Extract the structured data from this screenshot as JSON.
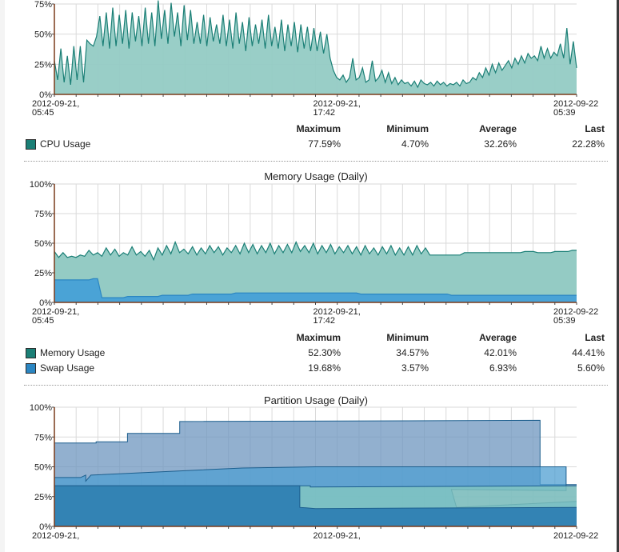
{
  "theme": {
    "cpu": "#1b7f76",
    "cpu_fill": "#94cbc4",
    "mem": "#1b7f76",
    "mem_fill": "#94cbc4",
    "swap": "#2b86c2",
    "swap_fill": "#4aa3d6",
    "axis": "#7a3b1b"
  },
  "cpu": {
    "title": "",
    "y_ticks": [
      "75%",
      "50%",
      "25%",
      "0%"
    ],
    "x_labels": [
      [
        "2012-09-21,",
        "05:45"
      ],
      [
        "2012-09-21,",
        "17:42"
      ],
      [
        "2012-09-22",
        "05:39"
      ]
    ],
    "legend_headers": [
      "Maximum",
      "Minimum",
      "Average",
      "Last"
    ],
    "legend": [
      {
        "name": "CPU Usage",
        "color": "#1b7f76",
        "max": "77.59%",
        "min": "4.70%",
        "avg": "32.26%",
        "last": "22.28%"
      }
    ]
  },
  "memory": {
    "title": "Memory Usage (Daily)",
    "y_ticks": [
      "100%",
      "75%",
      "50%",
      "25%",
      "0%"
    ],
    "x_labels": [
      [
        "2012-09-21,",
        "05:45"
      ],
      [
        "2012-09-21,",
        "17:42"
      ],
      [
        "2012-09-22",
        "05:39"
      ]
    ],
    "legend_headers": [
      "Maximum",
      "Minimum",
      "Average",
      "Last"
    ],
    "legend": [
      {
        "name": "Memory Usage",
        "color": "#1b7f76",
        "max": "52.30%",
        "min": "34.57%",
        "avg": "42.01%",
        "last": "44.41%"
      },
      {
        "name": "Swap Usage",
        "color": "#2b86c2",
        "max": "19.68%",
        "min": "3.57%",
        "avg": "6.93%",
        "last": "5.60%"
      }
    ]
  },
  "partition": {
    "title": "Partition Usage (Daily)",
    "y_ticks": [
      "100%",
      "75%",
      "50%",
      "25%",
      "0%"
    ],
    "x_labels": [
      "2012-09-21,",
      "2012-09-21,",
      "2012-09-22"
    ]
  },
  "chart_data": [
    {
      "type": "area",
      "title": "",
      "series": [
        {
          "name": "CPU Usage",
          "values": [
            28,
            12,
            38,
            10,
            32,
            8,
            40,
            12,
            40,
            10,
            45,
            42,
            40,
            48,
            65,
            40,
            68,
            38,
            72,
            40,
            66,
            42,
            70,
            38,
            68,
            44,
            65,
            40,
            72,
            42,
            68,
            40,
            78,
            46,
            70,
            42,
            76,
            48,
            68,
            40,
            74,
            45,
            70,
            42,
            60,
            42,
            66,
            40,
            64,
            44,
            58,
            42,
            66,
            40,
            62,
            38,
            68,
            42,
            60,
            36,
            64,
            40,
            58,
            42,
            62,
            38,
            66,
            40,
            56,
            38,
            62,
            36,
            58,
            40,
            60,
            35,
            58,
            38,
            56,
            36,
            55,
            36,
            52,
            34,
            50,
            30,
            20,
            14,
            12,
            16,
            10,
            14,
            30,
            12,
            14,
            22,
            10,
            12,
            28,
            11,
            14,
            20,
            10,
            18,
            9,
            14,
            8,
            12,
            9,
            10,
            7,
            11,
            6,
            12,
            9,
            8,
            10,
            7,
            11,
            8,
            10,
            7,
            9,
            8,
            10,
            7,
            12,
            9,
            10,
            14,
            12,
            18,
            14,
            22,
            16,
            25,
            18,
            26,
            20,
            24,
            28,
            22,
            30,
            25,
            32,
            26,
            34,
            30,
            32,
            28,
            40,
            30,
            38,
            30,
            35,
            32,
            42,
            30,
            55,
            25,
            44,
            22
          ]
        }
      ],
      "ylim": [
        0,
        75
      ],
      "x_tick_labels": [
        "2012-09-21, 05:45",
        "2012-09-21, 17:42",
        "2012-09-22 05:39"
      ]
    },
    {
      "type": "area",
      "title": "Memory Usage (Daily)",
      "series": [
        {
          "name": "Memory Usage",
          "values": [
            43,
            38,
            42,
            38,
            39,
            38,
            40,
            39,
            44,
            40,
            42,
            39,
            46,
            40,
            45,
            39,
            42,
            40,
            47,
            40,
            43,
            39,
            44,
            36,
            46,
            40,
            48,
            41,
            51,
            42,
            45,
            41,
            47,
            40,
            46,
            41,
            48,
            42,
            47,
            40,
            46,
            42,
            48,
            41,
            50,
            42,
            49,
            41,
            48,
            42,
            50,
            41,
            48,
            42,
            49,
            42,
            51,
            43,
            48,
            42,
            50,
            41,
            48,
            42,
            49,
            41,
            47,
            42,
            48,
            41,
            47,
            40,
            48,
            41,
            46,
            40,
            47,
            41,
            48,
            40,
            46,
            40,
            47,
            40,
            48,
            41,
            46,
            40,
            40,
            40,
            40,
            40,
            40,
            40,
            40,
            42,
            42,
            42,
            42,
            42,
            42,
            42,
            42,
            42,
            42,
            42,
            42,
            42,
            42,
            43,
            43,
            43,
            42,
            42,
            42,
            42,
            43,
            43,
            43,
            43,
            44,
            44
          ]
        },
        {
          "name": "Swap Usage",
          "values": [
            19,
            19,
            19,
            19,
            19,
            19,
            19,
            19,
            19,
            20,
            20,
            4,
            4,
            4,
            4,
            4,
            4,
            5,
            5,
            5,
            5,
            5,
            5,
            5,
            5,
            6,
            6,
            6,
            6,
            6,
            6,
            6,
            7,
            7,
            7,
            7,
            7,
            7,
            7,
            7,
            7,
            7,
            8,
            8,
            8,
            8,
            8,
            8,
            8,
            8,
            8,
            8,
            8,
            8,
            8,
            8,
            8,
            8,
            8,
            8,
            8,
            8,
            8,
            8,
            8,
            8,
            8,
            8,
            8,
            8,
            8,
            7,
            7,
            7,
            7,
            7,
            7,
            7,
            7,
            7,
            7,
            7,
            7,
            7,
            7,
            7,
            7,
            7,
            7,
            7,
            7,
            7,
            6,
            6,
            6,
            6,
            6,
            6,
            6,
            6,
            6,
            6,
            6,
            6,
            6,
            6,
            6,
            6,
            6,
            6,
            6,
            6,
            6,
            6,
            6,
            6,
            6,
            6,
            6,
            6,
            6,
            6
          ]
        }
      ],
      "ylim": [
        0,
        100
      ],
      "x_tick_labels": [
        "2012-09-21, 05:45",
        "2012-09-21, 17:42",
        "2012-09-22 05:39"
      ]
    },
    {
      "type": "area",
      "title": "Partition Usage (Daily)",
      "series": [
        {
          "name": "",
          "color": "#6e96bf",
          "values": [
            [
              0,
              70
            ],
            [
              8,
              70
            ],
            [
              8,
              71
            ],
            [
              14,
              71
            ],
            [
              14,
              78
            ],
            [
              24,
              78
            ],
            [
              24,
              88
            ],
            [
              93,
              89
            ],
            [
              93,
              35
            ],
            [
              100,
              35
            ]
          ]
        },
        {
          "name": "",
          "color": "#4f9fd2",
          "values": [
            [
              0,
              41
            ],
            [
              5,
              41
            ],
            [
              6,
              43
            ],
            [
              6,
              38
            ],
            [
              7,
              43
            ],
            [
              36,
              49
            ],
            [
              50,
              50
            ],
            [
              98,
              50
            ],
            [
              98,
              30
            ],
            [
              76,
              31
            ],
            [
              77,
              16
            ],
            [
              100,
              21
            ]
          ]
        },
        {
          "name": "",
          "color": "#86c9bf",
          "values": [
            [
              0,
              34
            ],
            [
              49,
              34
            ],
            [
              49,
              33
            ],
            [
              100,
              34
            ]
          ]
        },
        {
          "name": "",
          "color": "#2f7fb3",
          "values": [
            [
              0,
              34
            ],
            [
              47,
              34
            ],
            [
              47,
              16
            ],
            [
              50,
              15
            ],
            [
              100,
              16
            ]
          ]
        }
      ],
      "ylim": [
        0,
        100
      ],
      "x_tick_labels": [
        "2012-09-21,",
        "2012-09-21,",
        "2012-09-22"
      ]
    }
  ]
}
